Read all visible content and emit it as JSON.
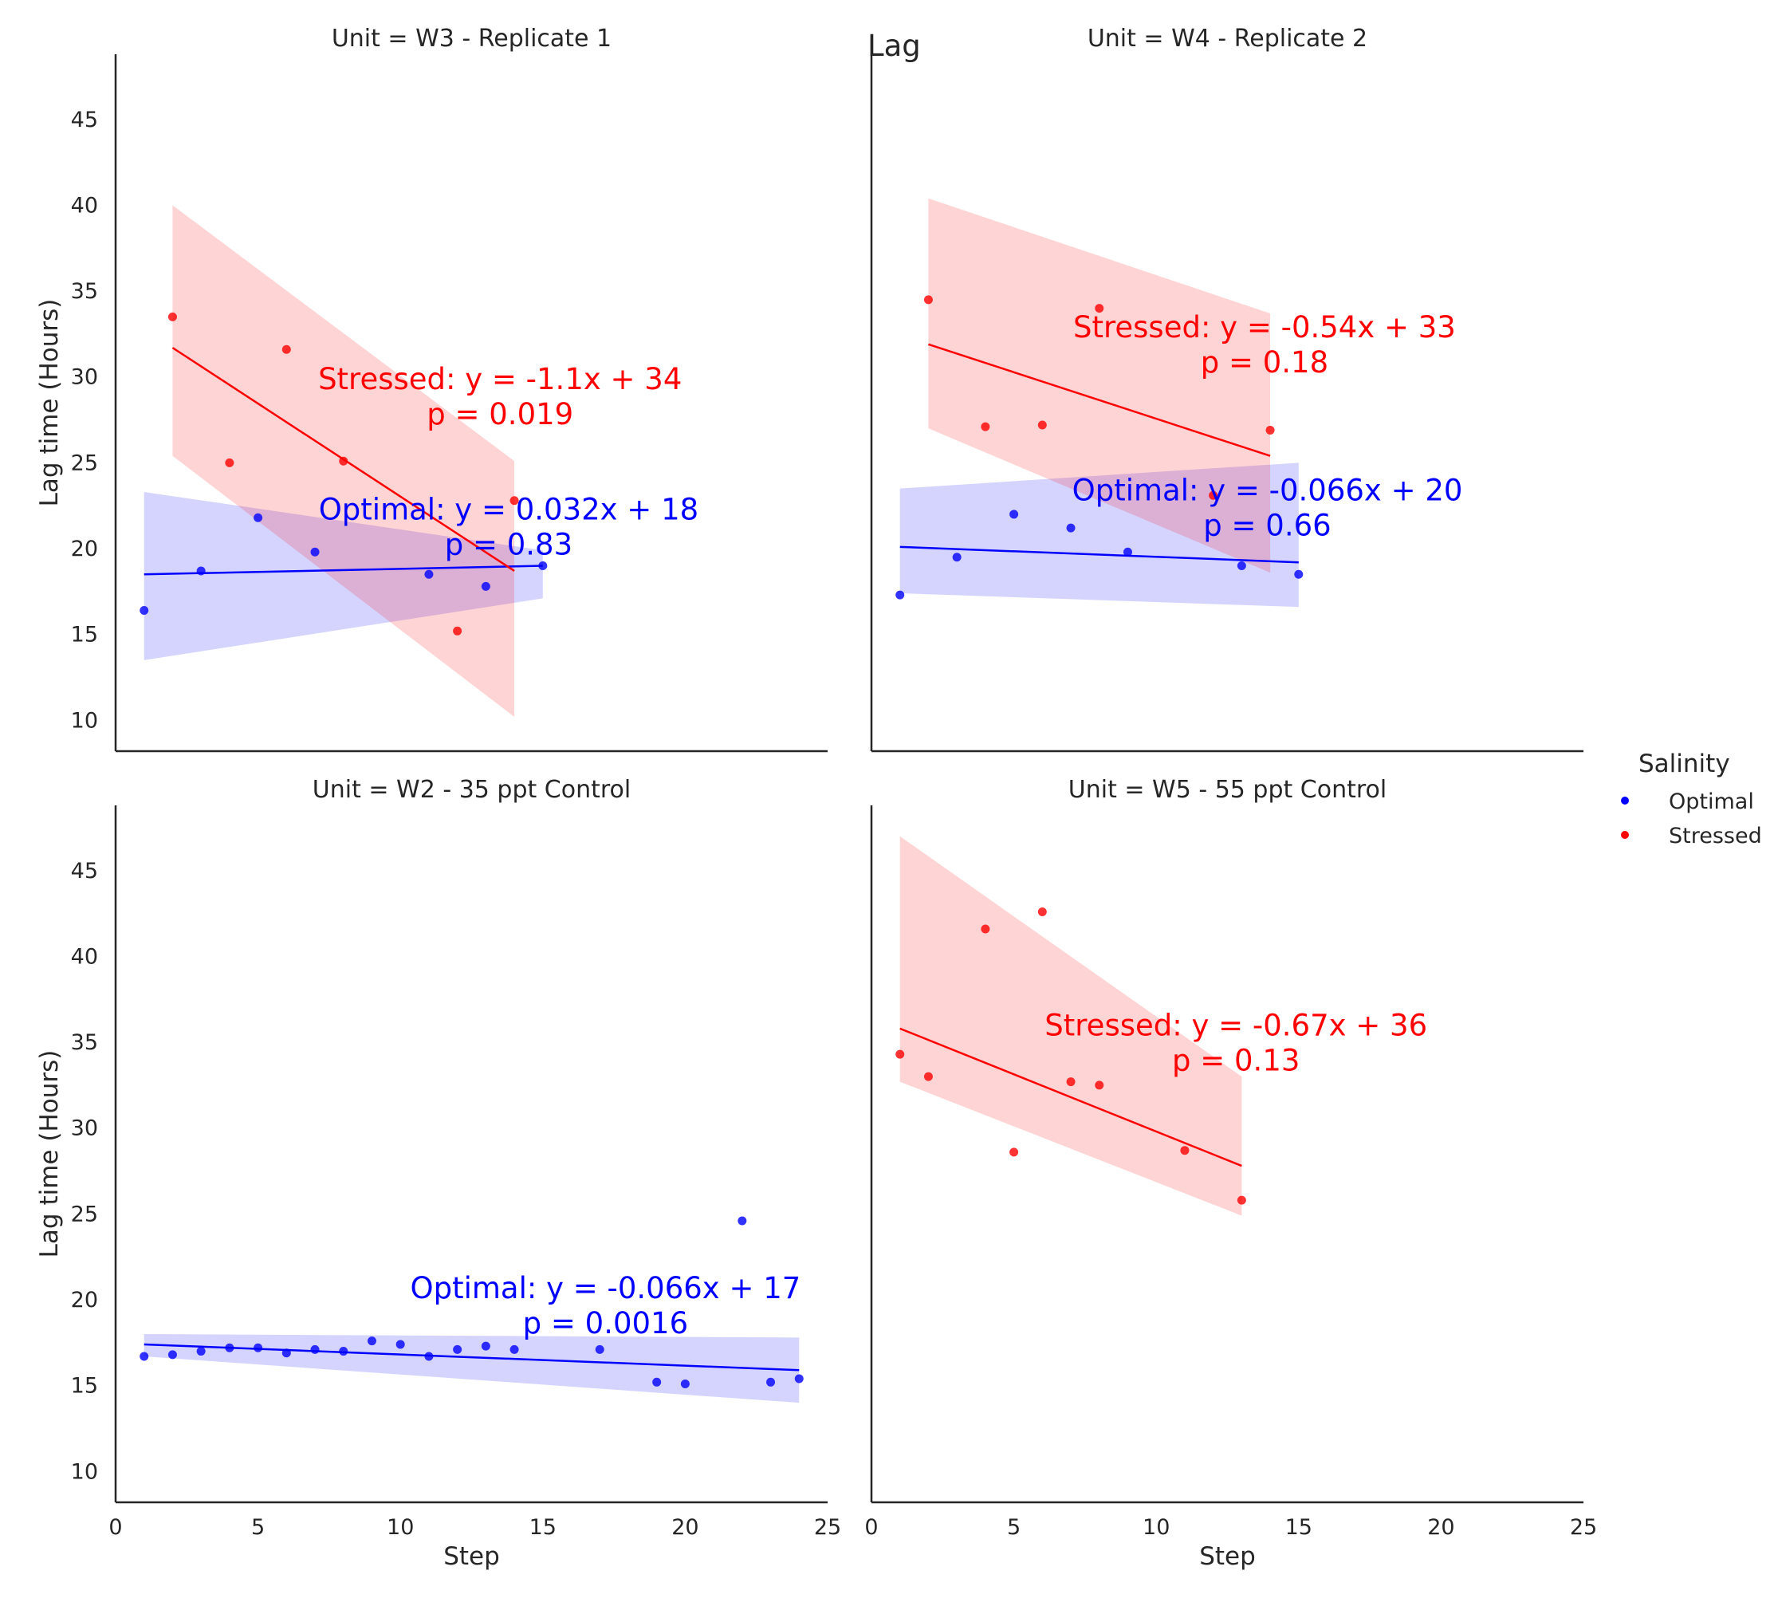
{
  "figure": {
    "label": "Lag",
    "xlabel": "Step",
    "ylabel": "Lag time (Hours)",
    "xlim": [
      0,
      25
    ],
    "ylim": [
      8.2,
      48.8
    ],
    "xticks": [
      0,
      5,
      10,
      15,
      20,
      25
    ],
    "yticks": [
      10,
      15,
      20,
      25,
      30,
      35,
      40,
      45
    ],
    "grid": false,
    "colors": {
      "Optimal": "#0000ff",
      "Stressed": "#ff0000"
    }
  },
  "legend": {
    "title": "Salinity",
    "placement": "right",
    "entries": [
      "Optimal",
      "Stressed"
    ]
  },
  "chart_data": [
    {
      "type": "scatter",
      "title": "Unit = W3 - Replicate 1",
      "series": [
        {
          "name": "Optimal",
          "x": [
            1,
            3,
            5,
            7,
            11,
            13,
            15
          ],
          "y": [
            16.4,
            18.7,
            21.8,
            19.8,
            18.5,
            17.8,
            19.0
          ],
          "fit": {
            "x": [
              1,
              15
            ],
            "y": [
              18.5,
              19.0
            ],
            "ci_upper": [
              23.3,
              19.9
            ],
            "ci_lower": [
              13.5,
              17.1
            ]
          },
          "annotation": [
            "Optimal: y = 0.032x + 18",
            "p = 0.83"
          ]
        },
        {
          "name": "Stressed",
          "x": [
            2,
            4,
            6,
            8,
            12,
            14
          ],
          "y": [
            33.5,
            25.0,
            31.6,
            25.1,
            15.2,
            22.8
          ],
          "fit": {
            "x": [
              2,
              14
            ],
            "y": [
              31.7,
              18.7
            ],
            "ci_upper": [
              40.0,
              25.1
            ],
            "ci_lower": [
              25.4,
              10.2
            ]
          },
          "annotation": [
            "Stressed: y = -1.1x + 34",
            "p = 0.019"
          ]
        }
      ]
    },
    {
      "type": "scatter",
      "title": "Unit = W4 - Replicate 2",
      "series": [
        {
          "name": "Optimal",
          "x": [
            1,
            3,
            5,
            7,
            9,
            13,
            15
          ],
          "y": [
            17.3,
            19.5,
            22.0,
            21.2,
            19.8,
            19.0,
            18.5
          ],
          "fit": {
            "x": [
              1,
              15
            ],
            "y": [
              20.1,
              19.2
            ],
            "ci_upper": [
              23.5,
              25.0
            ],
            "ci_lower": [
              17.4,
              16.6
            ]
          },
          "annotation": [
            "Optimal: y = -0.066x + 20",
            "p = 0.66"
          ]
        },
        {
          "name": "Stressed",
          "x": [
            2,
            4,
            6,
            8,
            12,
            14
          ],
          "y": [
            34.5,
            27.1,
            27.2,
            34.0,
            23.1,
            26.9
          ],
          "fit": {
            "x": [
              2,
              14
            ],
            "y": [
              31.9,
              25.4
            ],
            "ci_upper": [
              40.4,
              33.7
            ],
            "ci_lower": [
              27.0,
              18.6
            ]
          },
          "annotation": [
            "Stressed: y = -0.54x + 33",
            "p = 0.18"
          ]
        }
      ]
    },
    {
      "type": "scatter",
      "title": "Unit = W2 - 35 ppt Control",
      "series": [
        {
          "name": "Optimal",
          "x": [
            1,
            2,
            3,
            4,
            5,
            6,
            7,
            8,
            9,
            10,
            11,
            12,
            13,
            14,
            17,
            19,
            20,
            22,
            23,
            24
          ],
          "y": [
            16.7,
            16.8,
            17.0,
            17.2,
            17.2,
            16.9,
            17.1,
            17.0,
            17.6,
            17.4,
            16.7,
            17.1,
            17.3,
            17.1,
            17.1,
            15.2,
            15.1,
            24.6,
            15.2,
            15.4
          ],
          "fit": {
            "x": [
              1,
              24
            ],
            "y": [
              17.4,
              15.9
            ],
            "ci_upper": [
              18.0,
              17.8
            ],
            "ci_lower": [
              16.7,
              14.0
            ]
          },
          "annotation": [
            "Optimal: y = -0.066x + 17",
            "p = 0.0016"
          ]
        }
      ]
    },
    {
      "type": "scatter",
      "title": "Unit = W5 - 55 ppt Control",
      "series": [
        {
          "name": "Stressed",
          "x": [
            1,
            2,
            4,
            5,
            6,
            7,
            8,
            11,
            13
          ],
          "y": [
            34.3,
            33.0,
            41.6,
            28.6,
            42.6,
            32.7,
            32.5,
            28.7,
            25.8
          ],
          "fit": {
            "x": [
              1,
              13
            ],
            "y": [
              35.8,
              27.8
            ],
            "ci_upper": [
              47.0,
              33.0
            ],
            "ci_lower": [
              32.7,
              24.9
            ]
          },
          "annotation": [
            "Stressed: y = -0.67x + 36",
            "p = 0.13"
          ]
        }
      ]
    }
  ]
}
